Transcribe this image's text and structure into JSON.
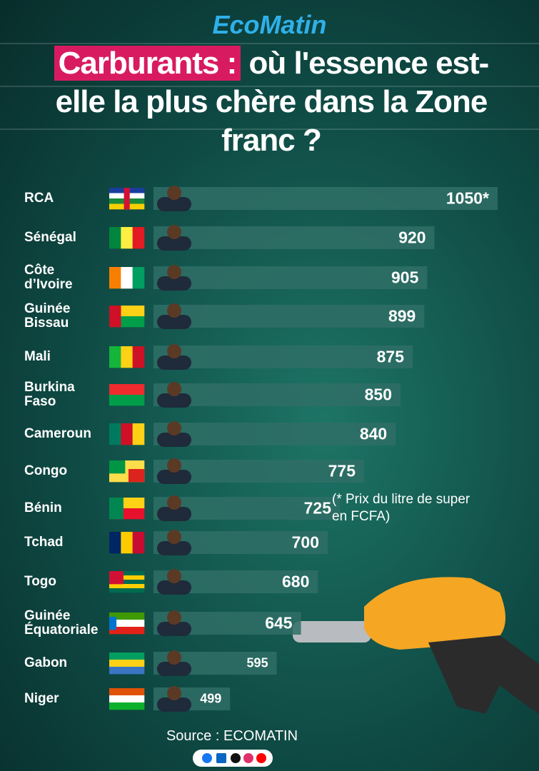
{
  "chart_data": {
    "type": "bar",
    "brand": "EcoMatin",
    "title_highlight": "Carburants :",
    "title": "où l'essence est-elle la plus chère dans la Zone franc ?",
    "categories": [
      "RCA",
      "Sénégal",
      "Côte d’Ivoire",
      "Guinée Bissau",
      "Mali",
      "Burkina Faso",
      "Cameroun",
      "Congo",
      "Bénin",
      "Tchad",
      "Togo",
      "Guinée Équatoriale",
      "Gabon",
      "Niger"
    ],
    "values": [
      1050,
      920,
      905,
      899,
      875,
      850,
      840,
      775,
      725,
      700,
      680,
      645,
      595,
      499
    ],
    "value_labels": [
      "1050*",
      "920",
      "905",
      "899",
      "875",
      "850",
      "840",
      "775",
      "725",
      "700",
      "680",
      "645",
      "595",
      "499"
    ],
    "color": "#2f6f66",
    "note": "(* Prix du litre de super en FCFA)",
    "source": "Source : ECOMATIN"
  }
}
